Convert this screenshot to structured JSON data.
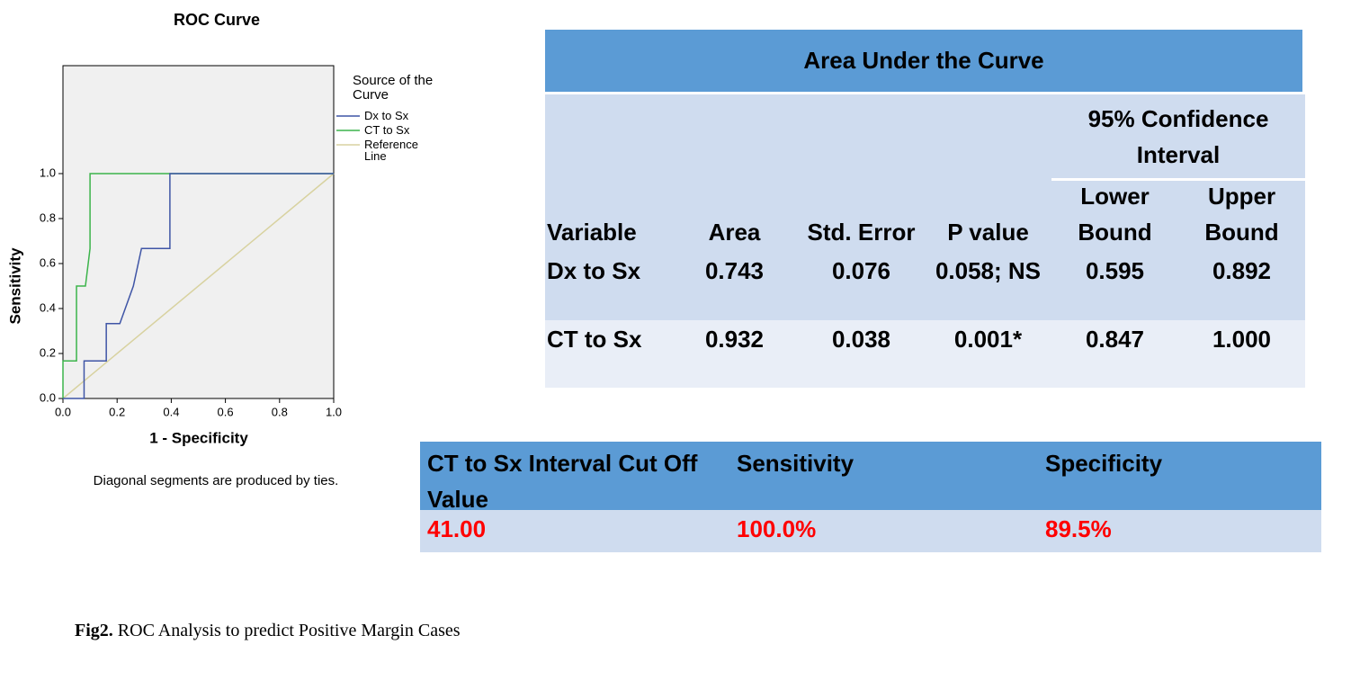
{
  "chart_data": {
    "type": "line",
    "title": "ROC Curve",
    "x_label": "1 - Specificity",
    "y_label": "Sensitivity",
    "legend_title": "Source of the Curve",
    "note": "Diagonal segments are produced by ties.",
    "xlim": [
      0,
      1
    ],
    "ylim": [
      0,
      1.48
    ],
    "xticks": [
      {
        "value": 0,
        "label": "0.0"
      },
      0.2,
      0.4,
      0.6,
      0.8,
      {
        "value": 1,
        "label": "1.0"
      }
    ],
    "yticks": [
      {
        "value": 0,
        "label": "0.0"
      },
      0.2,
      0.4,
      0.6,
      0.8,
      {
        "value": 1,
        "label": "1.0"
      }
    ],
    "grid": false,
    "series": [
      {
        "name": "Dx to Sx",
        "color": "#3f55a6",
        "x": [
          0,
          0.078,
          0.078,
          0.16,
          0.16,
          0.21,
          0.26,
          0.29,
          0.395,
          0.395,
          1
        ],
        "values": [
          0,
          0,
          0.167,
          0.167,
          0.333,
          0.333,
          0.5,
          0.667,
          0.667,
          1,
          1
        ]
      },
      {
        "name": "CT to Sx",
        "color": "#3cb44b",
        "x": [
          0,
          0,
          0.05,
          0.05,
          0.083,
          0.1,
          0.1,
          1
        ],
        "values": [
          0,
          0.167,
          0.167,
          0.5,
          0.5,
          0.667,
          1,
          1
        ]
      },
      {
        "name": "Reference Line",
        "color": "#d8d2a0",
        "x": [
          0,
          1
        ],
        "values": [
          0,
          1
        ]
      }
    ]
  },
  "auc_table": {
    "title": "Area Under the Curve",
    "group_header": "95% Confidence Interval",
    "columns": [
      "Variable",
      "Area",
      "Std. Error",
      "P value",
      "Lower Bound",
      "Upper Bound"
    ],
    "rows": [
      [
        "Dx to Sx",
        "0.743",
        "0.076",
        "0.058; NS",
        "0.595",
        "0.892"
      ],
      [
        "CT to Sx",
        "0.932",
        "0.038",
        "0.001*",
        "0.847",
        "1.000"
      ]
    ]
  },
  "cutoff_table": {
    "columns": [
      "CT to Sx Interval Cut Off Value",
      "Sensitivity",
      "Specificity"
    ],
    "rows": [
      [
        "41.00",
        "100.0%",
        "89.5%"
      ]
    ]
  },
  "caption": {
    "label": "Fig2.",
    "text": "ROC Analysis to predict Positive Margin Cases"
  }
}
